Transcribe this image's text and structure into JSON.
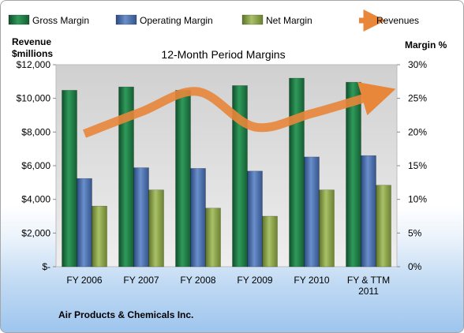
{
  "company": "Air Products & Chemicals Inc.",
  "chart_data": {
    "type": "bar",
    "title": "12-Month Period Margins",
    "ylabel_left": [
      "Revenue",
      "$millions"
    ],
    "ylabel_right": "Margin %",
    "categories": [
      [
        "FY 2006"
      ],
      [
        "FY 2007"
      ],
      [
        "FY 2008"
      ],
      [
        "FY 2009"
      ],
      [
        "FY 2010"
      ],
      [
        "FY & TTM",
        "2011"
      ]
    ],
    "y_left_ticks": [
      "$-",
      "$2,000",
      "$4,000",
      "$6,000",
      "$8,000",
      "$10,000",
      "$12,000"
    ],
    "y_right_ticks": [
      "0%",
      "5%",
      "10%",
      "15%",
      "20%",
      "25%",
      "30%"
    ],
    "ylim_left": [
      0,
      12000
    ],
    "ylim_right": [
      0,
      30
    ],
    "series": [
      {
        "name": "Gross Margin",
        "axis": "right",
        "color": "#1e7b45",
        "values": [
          26.2,
          26.7,
          26.2,
          26.9,
          28.0,
          27.4
        ]
      },
      {
        "name": "Operating Margin",
        "axis": "right",
        "color": "#4a6fae",
        "values": [
          13.1,
          14.7,
          14.6,
          14.2,
          16.3,
          16.5
        ]
      },
      {
        "name": "Net Margin",
        "axis": "right",
        "color": "#8ea64a",
        "values": [
          9.0,
          11.4,
          8.7,
          7.5,
          11.4,
          12.1
        ]
      },
      {
        "name": "Revenues",
        "axis": "left",
        "type": "line",
        "color": "#e8863a",
        "values": [
          7900,
          9200,
          10400,
          8300,
          9100,
          10200
        ]
      }
    ],
    "legend_position": "top",
    "grid": false
  }
}
